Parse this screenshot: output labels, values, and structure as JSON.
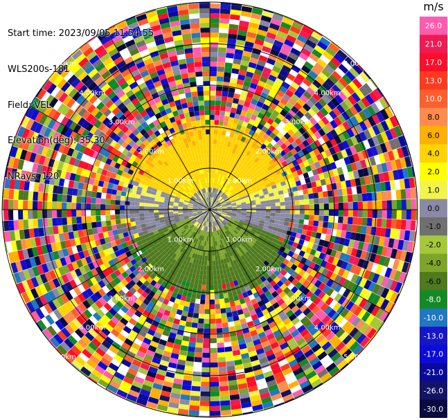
{
  "header": {
    "start_time": "Start time: 2023/09/05 11:54:55",
    "instrument": "WLS200s-181",
    "field": "Field: VEL",
    "elevation": "Elevation(deg): 35.30",
    "nrays": "NRays: 120"
  },
  "colorbar": {
    "unit": "m/s",
    "ticks": [
      "26.0",
      "21.0",
      "17.0",
      "13.0",
      "10.0",
      "8.0",
      "6.0",
      "4.0",
      "2.0",
      "1.0",
      "0.0",
      "-1.0",
      "-2.0",
      "-4.0",
      "-6.0",
      "-8.0",
      "-10.0",
      "-13.0",
      "-17.0",
      "-21.0",
      "-26.0",
      "-30.0"
    ],
    "colors": [
      "#FF5CAF",
      "#F01B53",
      "#FF0D2C",
      "#FF3A1E",
      "#FF5E2F",
      "#FF8C4C",
      "#FFB000",
      "#FFD400",
      "#FFFF00",
      "#F2F44A",
      "#8A8AA6",
      "#707070",
      "#A4C83A",
      "#7EA52A",
      "#4F7A1E",
      "#138A25",
      "#1F78C0",
      "#1616C8",
      "#0C0CD8",
      "#0A0A9A",
      "#141464",
      "#0A0A40"
    ]
  },
  "chart_data": {
    "type": "heatmap",
    "projection": "ppi",
    "field": "VEL",
    "units": "m/s",
    "nrays": 120,
    "elevation_deg": 35.3,
    "vmin": -30.0,
    "vmax": 26.0,
    "range_rings_km": [
      1.0,
      2.0,
      3.0,
      4.0,
      5.0
    ],
    "range_ring_labels": [
      "1.00km",
      "2.00km",
      "3.00km",
      "4.00km",
      "5.00km"
    ],
    "spokes_deg": [
      0,
      30,
      60,
      90,
      120,
      150,
      180,
      210,
      240,
      270,
      300,
      330
    ],
    "max_range_km": 5.0,
    "valid_data_range_km": 2.0,
    "velocity_pattern": {
      "north_sector": 2.5,
      "north_far": 5.0,
      "south_sector": -4.0,
      "south_far": -6.5,
      "crosswind": 0.0
    }
  }
}
